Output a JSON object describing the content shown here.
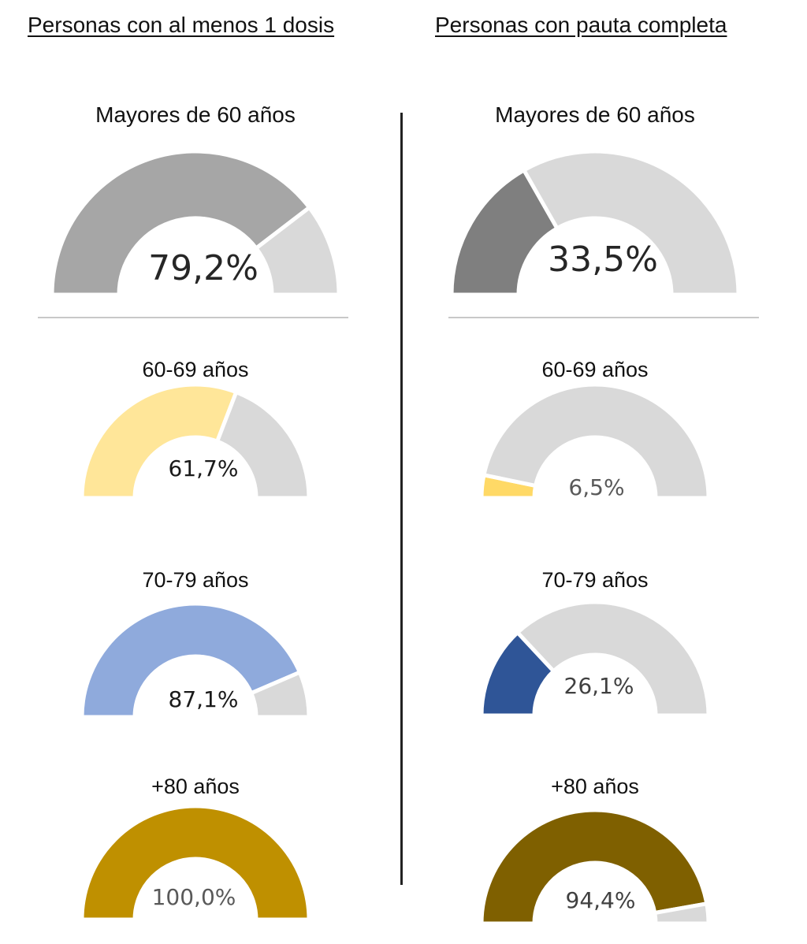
{
  "headers": {
    "left": "Personas con al menos 1 dosis",
    "right": "Personas con pauta completa"
  },
  "chart_data": [
    {
      "type": "gauge",
      "panel": "left",
      "label": "Mayores de 60 años",
      "value": 79.2,
      "display": "79,2%",
      "max": 100,
      "fill_color": "#a6a6a6",
      "track_color": "#d9d9d9"
    },
    {
      "type": "gauge",
      "panel": "left",
      "label": "60-69 años",
      "value": 61.7,
      "display": "61,7%",
      "max": 100,
      "fill_color": "#ffe699",
      "track_color": "#d9d9d9"
    },
    {
      "type": "gauge",
      "panel": "left",
      "label": "70-79 años",
      "value": 87.1,
      "display": "87,1%",
      "max": 100,
      "fill_color": "#8faadc",
      "track_color": "#d9d9d9"
    },
    {
      "type": "gauge",
      "panel": "left",
      "label": "+80 años",
      "value": 100.0,
      "display": "100,0%",
      "max": 100,
      "fill_color": "#bf9000",
      "track_color": "#d9d9d9"
    },
    {
      "type": "gauge",
      "panel": "right",
      "label": "Mayores de 60 años",
      "value": 33.5,
      "display": "33,5%",
      "max": 100,
      "fill_color": "#7f7f7f",
      "track_color": "#d9d9d9"
    },
    {
      "type": "gauge",
      "panel": "right",
      "label": "60-69 años",
      "value": 6.5,
      "display": "6,5%",
      "max": 100,
      "fill_color": "#ffd966",
      "track_color": "#d9d9d9"
    },
    {
      "type": "gauge",
      "panel": "right",
      "label": "70-79 años",
      "value": 26.1,
      "display": "26,1%",
      "max": 100,
      "fill_color": "#2f5597",
      "track_color": "#d9d9d9"
    },
    {
      "type": "gauge",
      "panel": "right",
      "label": "+80 años",
      "value": 94.4,
      "display": "94,4%",
      "max": 100,
      "fill_color": "#7f6000",
      "track_color": "#d9d9d9"
    }
  ]
}
